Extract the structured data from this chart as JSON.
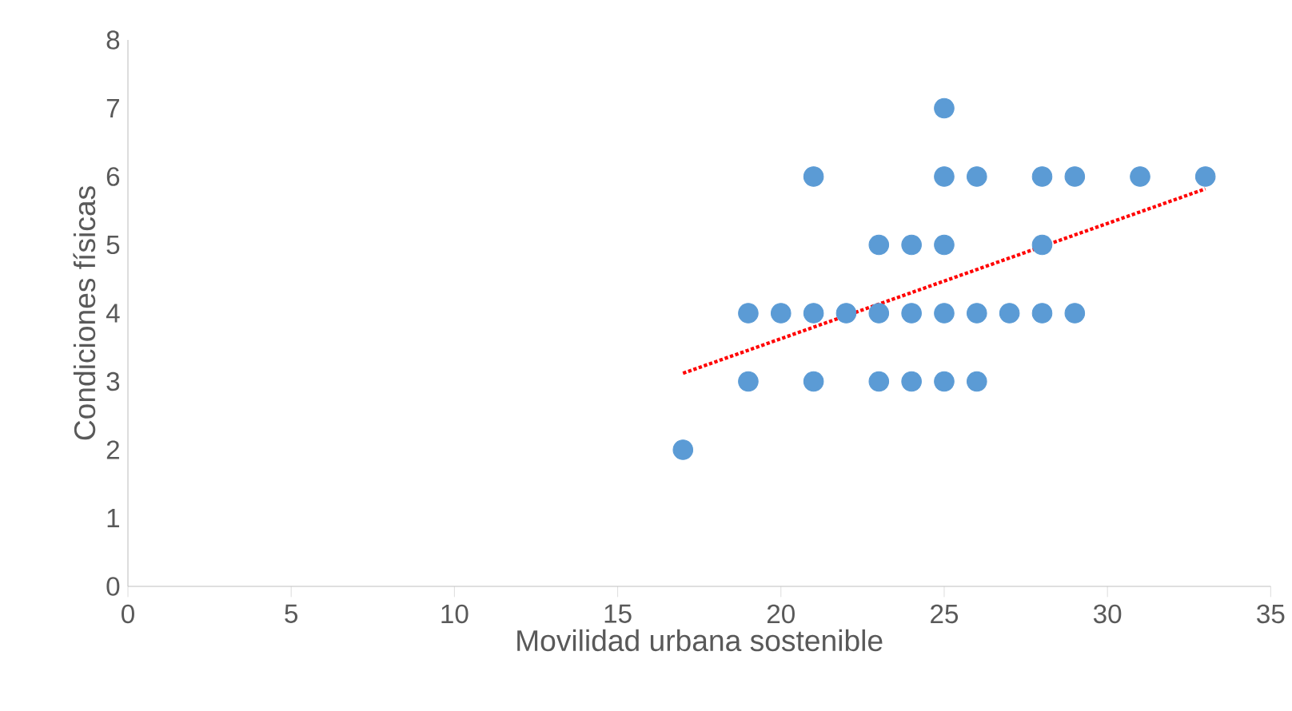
{
  "chart_data": {
    "type": "scatter",
    "xlabel": "Movilidad urbana sostenible",
    "ylabel": "Condiciones físicas",
    "xlim": [
      0,
      35
    ],
    "xticks": [
      0,
      5,
      10,
      15,
      20,
      25,
      30,
      35
    ],
    "ylim": [
      0,
      8
    ],
    "yticks": [
      0,
      1,
      2,
      3,
      4,
      5,
      6,
      7,
      8
    ],
    "series": [
      {
        "color": "#5b9bd5",
        "marker": "circle",
        "x": [
          17,
          19,
          21,
          23,
          24,
          25,
          26,
          19,
          20,
          21,
          22,
          23,
          24,
          25,
          26,
          27,
          28,
          29,
          23,
          24,
          25,
          28,
          21,
          25,
          26,
          28,
          29,
          31,
          33,
          25
        ],
        "values": [
          2,
          3,
          3,
          3,
          3,
          3,
          3,
          4,
          4,
          4,
          4,
          4,
          4,
          4,
          4,
          4,
          4,
          4,
          5,
          5,
          5,
          5,
          6,
          6,
          6,
          6,
          6,
          6,
          6,
          7
        ]
      },
      {
        "type": "line",
        "color": "#ff0000",
        "marker": "none",
        "line_style": "dotted",
        "x": [
          17,
          33
        ],
        "values": [
          3.12,
          5.82
        ]
      }
    ]
  }
}
